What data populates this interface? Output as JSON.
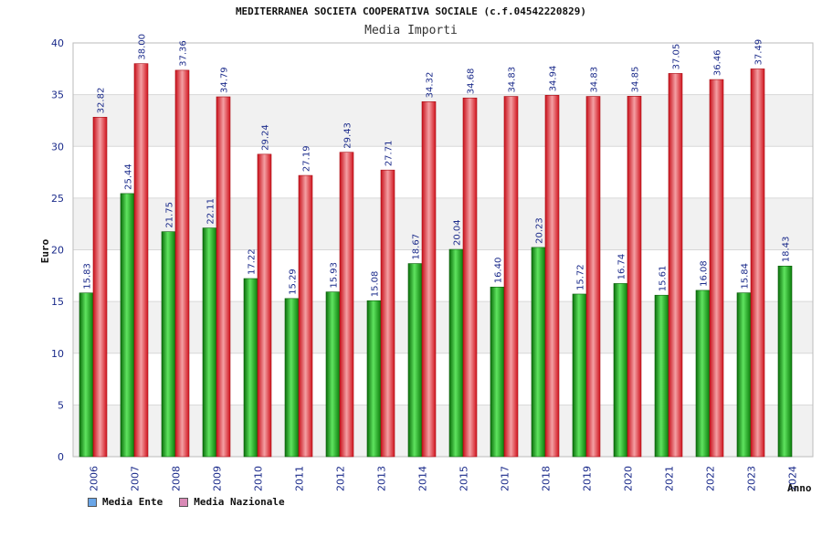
{
  "chart_data": {
    "type": "bar",
    "title": "MEDITERRANEA SOCIETA COOPERATIVA SOCIALE (c.f.04542220829)",
    "subtitle": "Media Importi",
    "xlabel": "Anno",
    "ylabel": "Euro",
    "ylim": [
      0,
      40
    ],
    "yticks": [
      0,
      5,
      10,
      15,
      20,
      25,
      30,
      35,
      40
    ],
    "grid": true,
    "legend_position": "bottom-left",
    "categories": [
      "2006",
      "2007",
      "2008",
      "2009",
      "2010",
      "2011",
      "2012",
      "2013",
      "2014",
      "2015",
      "2017",
      "2018",
      "2019",
      "2020",
      "2021",
      "2022",
      "2023",
      "2024"
    ],
    "series": [
      {
        "name": "Media Ente",
        "color": "#16a516",
        "legend_color": "#6aa6e8",
        "values": [
          15.83,
          25.44,
          21.75,
          22.11,
          17.22,
          15.29,
          15.93,
          15.08,
          18.67,
          20.04,
          16.4,
          20.23,
          15.72,
          16.74,
          15.61,
          16.08,
          15.84,
          18.43
        ],
        "labels": [
          "15.83",
          "25.44",
          "21.75",
          "22.11",
          "17.22",
          "15.29",
          "15.93",
          "15.08",
          "18.67",
          "20.04",
          "16.40",
          "20.23",
          "15.72",
          "16.74",
          "15.61",
          "16.08",
          "15.84",
          "18.43"
        ]
      },
      {
        "name": "Media Nazionale",
        "color": "#e8202a",
        "legend_color": "#d98ab6",
        "values": [
          32.82,
          38.0,
          37.36,
          34.79,
          29.24,
          27.19,
          29.43,
          27.71,
          34.32,
          34.68,
          34.83,
          34.94,
          34.83,
          34.85,
          37.05,
          36.46,
          37.49,
          null
        ],
        "labels": [
          "32.82",
          "38.00",
          "37.36",
          "34.79",
          "29.24",
          "27.19",
          "29.43",
          "27.71",
          "34.32",
          "34.68",
          "34.83",
          "34.94",
          "34.83",
          "34.85",
          "37.05",
          "36.46",
          "37.49",
          null
        ]
      }
    ]
  }
}
